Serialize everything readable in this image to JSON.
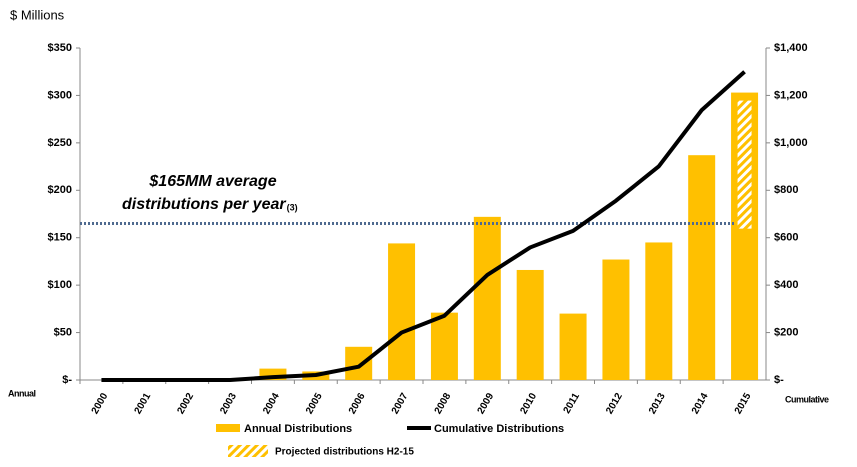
{
  "chart_data": {
    "type": "bar",
    "y_unit_label": "$ Millions",
    "left_label": "Annual",
    "right_label": "Cumulative",
    "categories": [
      "2000",
      "2001",
      "2002",
      "2003",
      "2004",
      "2005",
      "2006",
      "2007",
      "2008",
      "2009",
      "2010",
      "2011",
      "2012",
      "2013",
      "2014",
      "2015"
    ],
    "series": [
      {
        "name": "Annual Distributions",
        "color": "#ffc000",
        "type": "bar",
        "values": [
          0,
          0,
          0,
          0,
          12,
          9,
          35,
          144,
          71,
          172,
          116,
          70,
          127,
          145,
          237,
          303
        ]
      },
      {
        "name": "Cumulative Distributions",
        "color": "#000000",
        "type": "line",
        "axis": "y2",
        "values": [
          0,
          0,
          0,
          0,
          12,
          21,
          56,
          200,
          271,
          443,
          559,
          629,
          756,
          901,
          1138,
          1300
        ]
      },
      {
        "name": "Projected distributions H2-15",
        "color": "#ffc000",
        "type": "hatch",
        "values": [
          null,
          null,
          null,
          null,
          null,
          null,
          null,
          null,
          null,
          null,
          null,
          null,
          null,
          null,
          null,
          135
        ]
      }
    ],
    "reference_line": {
      "value": 165,
      "color": "#4f6a8f",
      "lines": [
        "$165MM average",
        "distributions per year"
      ],
      "note": "(3)"
    },
    "ylim": [
      0,
      350
    ],
    "yticks": [
      {
        "value": 0,
        "label": "$-"
      },
      {
        "value": 50,
        "label": "$50"
      },
      {
        "value": 100,
        "label": "$100"
      },
      {
        "value": 150,
        "label": "$150"
      },
      {
        "value": 200,
        "label": "$200"
      },
      {
        "value": 250,
        "label": "$250"
      },
      {
        "value": 300,
        "label": "$300"
      },
      {
        "value": 350,
        "label": "$350"
      }
    ],
    "y2lim": [
      0,
      1400
    ],
    "y2ticks": [
      {
        "value": 0,
        "label": "$-"
      },
      {
        "value": 200,
        "label": "$200"
      },
      {
        "value": 400,
        "label": "$400"
      },
      {
        "value": 600,
        "label": "$600"
      },
      {
        "value": 800,
        "label": "$800"
      },
      {
        "value": 1000,
        "label": "$1,000"
      },
      {
        "value": 1200,
        "label": "$1,200"
      },
      {
        "value": 1400,
        "label": "$1,400"
      }
    ]
  }
}
